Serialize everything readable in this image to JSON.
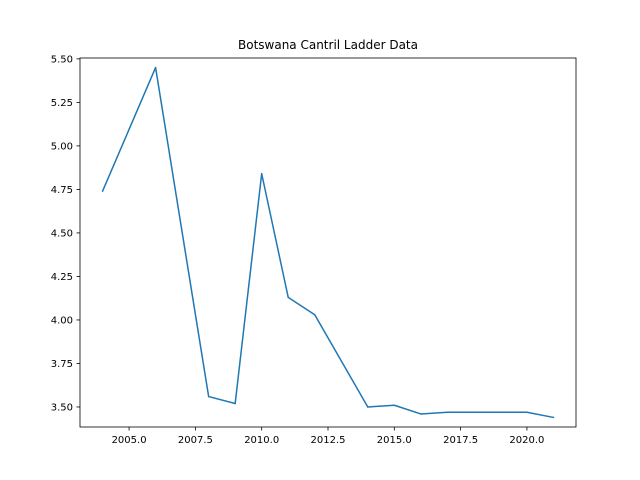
{
  "chart_data": {
    "type": "line",
    "title": "Botswana Cantril Ladder Data",
    "xlabel": "",
    "ylabel": "",
    "xlim": [
      2003.15,
      2021.85
    ],
    "ylim": [
      3.385,
      5.505
    ],
    "xticks": [
      2005.0,
      2007.5,
      2010.0,
      2012.5,
      2015.0,
      2017.5,
      2020.0
    ],
    "xtick_labels": [
      "2005.0",
      "2007.5",
      "2010.0",
      "2012.5",
      "2015.0",
      "2017.5",
      "2020.0"
    ],
    "yticks": [
      3.5,
      3.75,
      4.0,
      4.25,
      4.5,
      4.75,
      5.0,
      5.25,
      5.5
    ],
    "ytick_labels": [
      "3.50",
      "3.75",
      "4.00",
      "4.25",
      "4.50",
      "4.75",
      "5.00",
      "5.25",
      "5.50"
    ],
    "grid": false,
    "series": [
      {
        "color": "#1f77b4",
        "x": [
          2004,
          2006,
          2008,
          2009,
          2010,
          2011,
          2012,
          2014,
          2015,
          2016,
          2017,
          2019,
          2020,
          2021
        ],
        "values": [
          4.74,
          5.45,
          3.56,
          3.52,
          4.84,
          4.13,
          4.03,
          3.5,
          3.51,
          3.46,
          3.47,
          3.47,
          3.47,
          3.44
        ]
      }
    ]
  }
}
